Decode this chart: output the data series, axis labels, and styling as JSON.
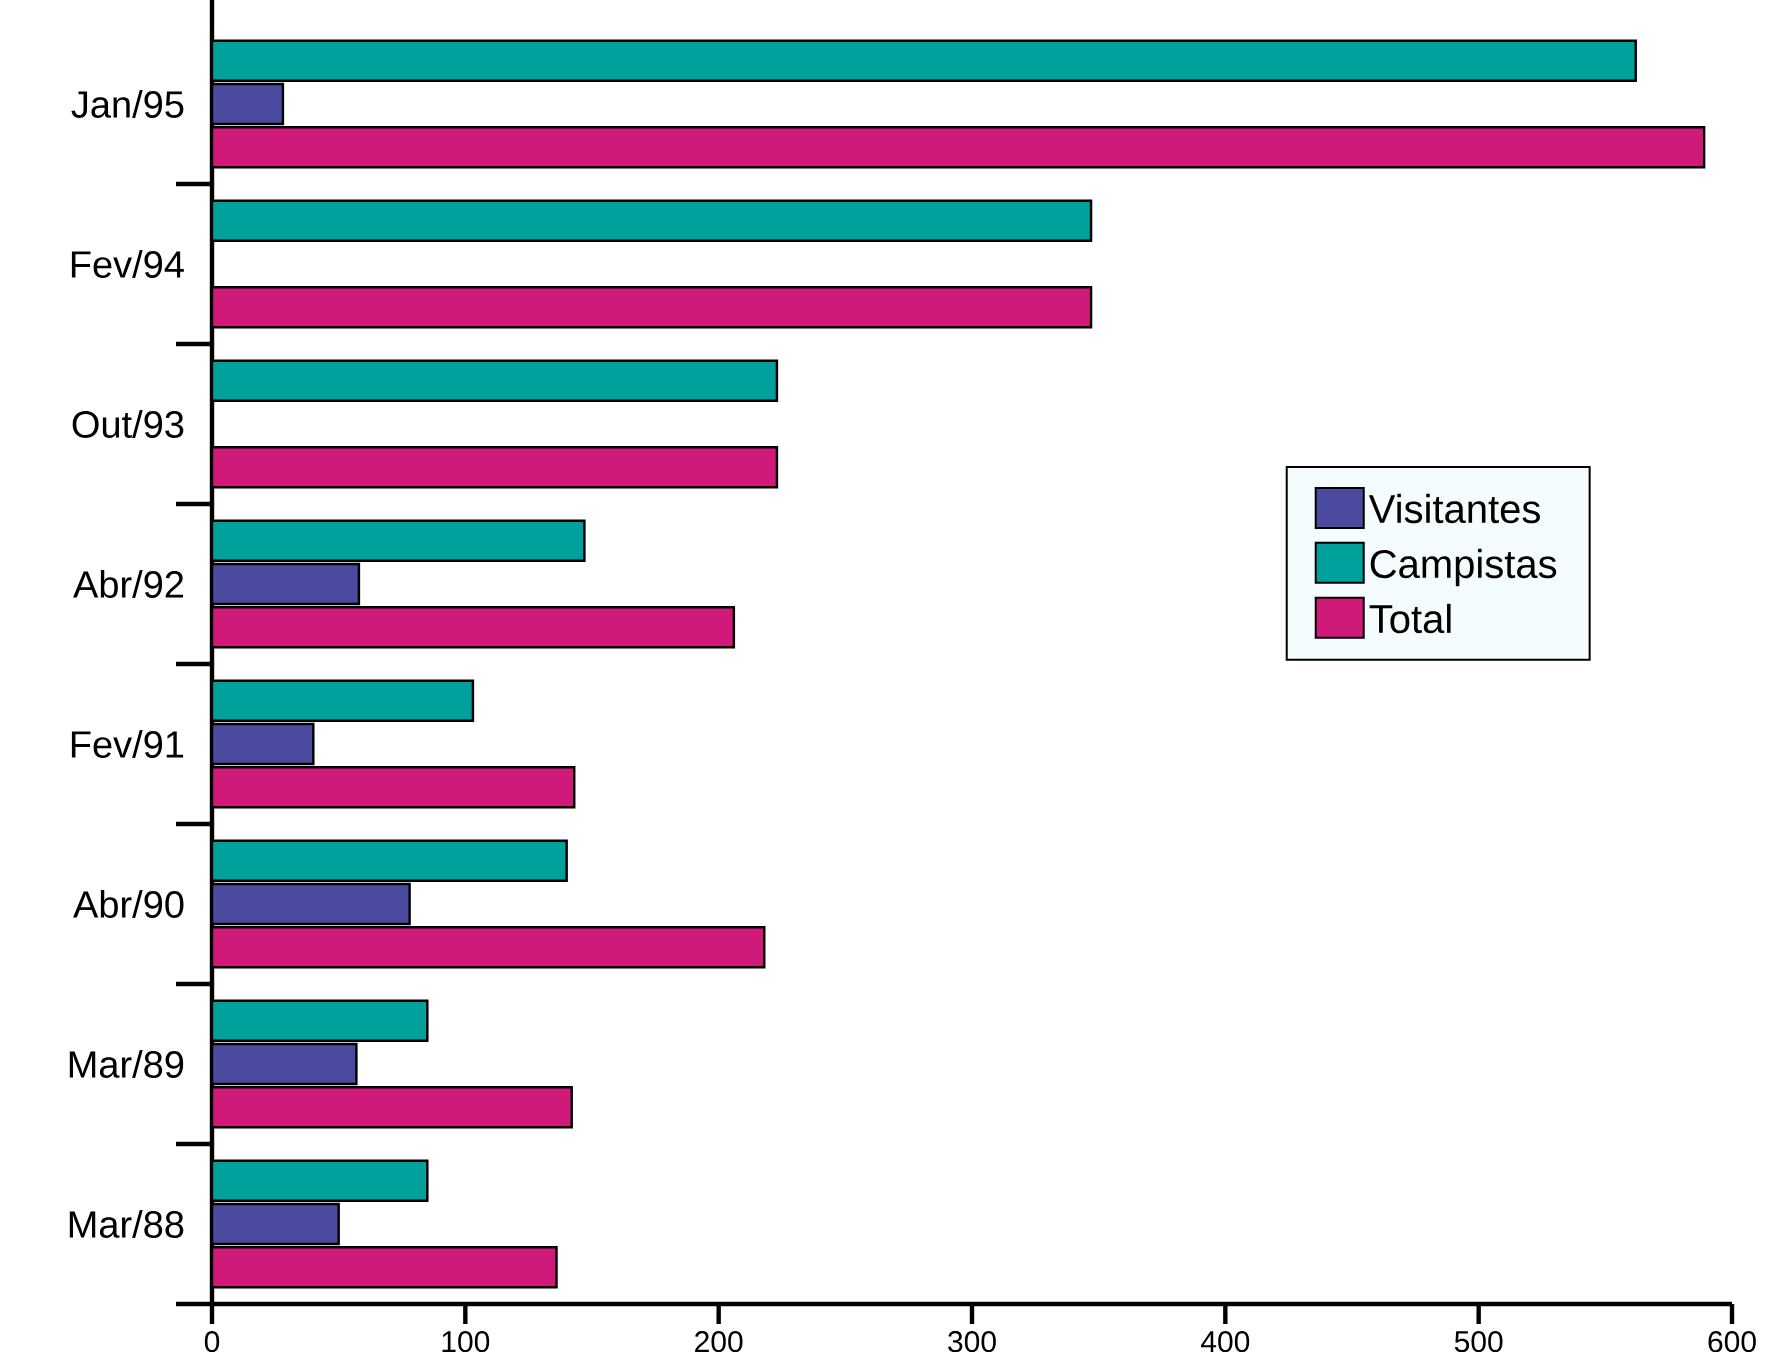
{
  "chart_data": {
    "type": "bar",
    "orientation": "horizontal",
    "categories": [
      "Jan/95",
      "Fev/94",
      "Out/93",
      "Abr/92",
      "Fev/91",
      "Abr/90",
      "Mar/89",
      "Mar/88"
    ],
    "series": [
      {
        "name": "Visitantes",
        "color": "#4a4a9e",
        "values": [
          28,
          null,
          null,
          58,
          40,
          78,
          57,
          50
        ]
      },
      {
        "name": "Campistas",
        "color": "#00a09c",
        "values": [
          562,
          347,
          223,
          147,
          103,
          140,
          85,
          85
        ]
      },
      {
        "name": "Total",
        "color": "#cf1a7a",
        "values": [
          589,
          347,
          223,
          206,
          143,
          218,
          142,
          136
        ]
      }
    ],
    "xlim": [
      0,
      600
    ],
    "xticks": [
      0,
      100,
      200,
      300,
      400,
      500,
      600
    ],
    "grid": false,
    "legend": "right"
  }
}
